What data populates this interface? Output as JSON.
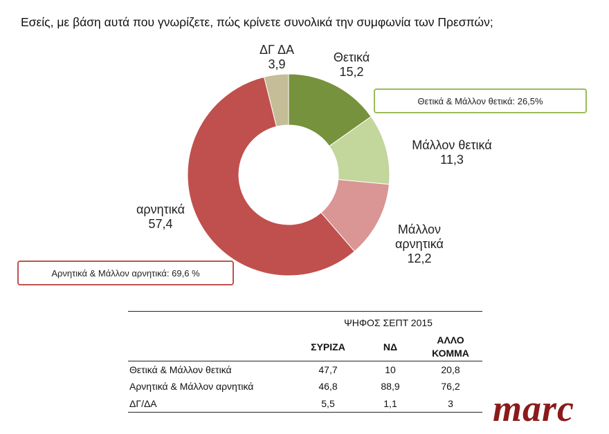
{
  "chart_data": {
    "type": "donut",
    "title": "Εσείς, με βάση αυτά που γνωρίζετε, πώς κρίνετε συνολικά την συμφωνία των Πρεσπών;",
    "categories": [
      "Θετικά",
      "Μάλλον θετικά",
      "Μάλλον αρνητικά",
      "αρνητικά",
      "ΔΓ ΔΑ"
    ],
    "values": [
      15.2,
      11.3,
      12.2,
      57.4,
      3.9
    ],
    "value_labels": [
      "15,2",
      "11,3",
      "12,2",
      "57,4",
      "3,9"
    ],
    "colors": [
      "#76923c",
      "#c3d69b",
      "#d99694",
      "#c0504d",
      "#c4bd97"
    ],
    "annotations": [
      {
        "text": "Θετικά & Μάλλον θετικά: 26,5%",
        "color": "#9bbb59"
      },
      {
        "text": "Αρνητικά & Μάλλον αρνητικά: 69,6 %",
        "color": "#c0504d"
      }
    ]
  },
  "table": {
    "group_header": "ΨΗΦΟΣ ΣΕΠΤ 2015",
    "columns": [
      "ΣΥΡΙΖΑ",
      "ΝΔ",
      "ΑΛΛΟ ΚΟΜΜΑ"
    ],
    "rows": [
      [
        "Θετικά & Μάλλον θετικά",
        "47,7",
        "10",
        "20,8"
      ],
      [
        "Αρνητικά & Μάλλον αρνητικά",
        "46,8",
        "88,9",
        "76,2"
      ],
      [
        "ΔΓ/ΔΑ",
        "5,5",
        "1,1",
        "3"
      ]
    ]
  },
  "logo": "marc"
}
